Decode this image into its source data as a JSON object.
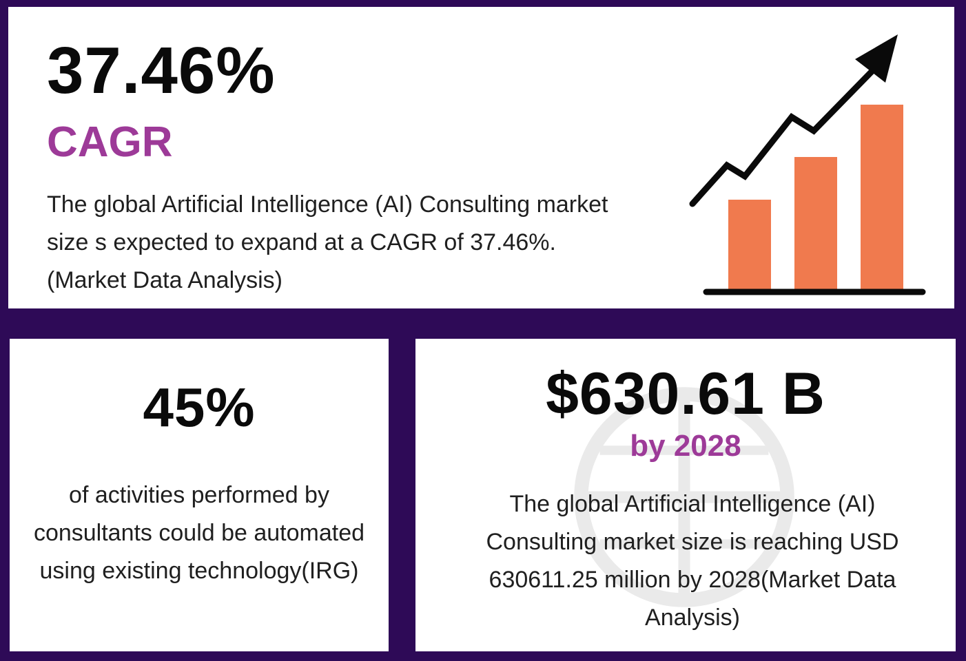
{
  "top_panel": {
    "stat": "37.46%",
    "label": "CAGR",
    "description": "The global Artificial Intelligence (AI) Consulting market size s expected to expand at a CAGR of 37.46%.(Market Data Analysis)",
    "icon": "growth-chart-icon"
  },
  "left_panel": {
    "stat": "45%",
    "description": "of activities performed by consultants could be automated using existing technology(IRG)"
  },
  "right_panel": {
    "stat": "$630.61 B",
    "label": "by 2028",
    "description": "The global Artificial Intelligence (AI) Consulting market size is reaching USD 630611.25 million by 2028(Market Data Analysis)",
    "watermark_icon": "globe-watermark-icon"
  },
  "colors": {
    "background": "#2e0a57",
    "panel": "#ffffff",
    "accent_purple": "#9d3a98",
    "bar_orange": "#f07a4e",
    "text_dark": "#0a0a0a"
  }
}
